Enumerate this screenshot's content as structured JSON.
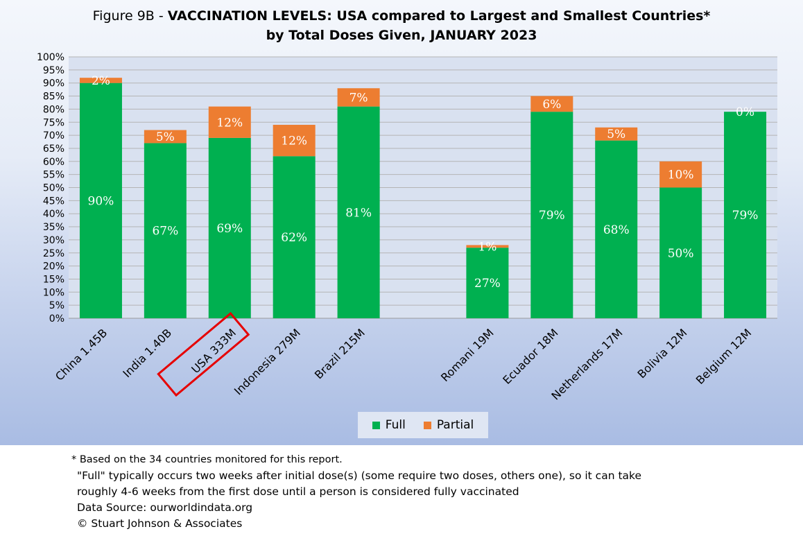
{
  "title": {
    "prefix": "Figure 9B - ",
    "main": "VACCINATION LEVELS:  USA compared to Largest and Smallest Countries*",
    "line2": "by Total Doses Given, JANUARY 2023"
  },
  "colors": {
    "full": "#00b050",
    "partial": "#ed7d31",
    "highlight": "#e60000"
  },
  "chart_data": {
    "type": "bar",
    "stacked": true,
    "categories": [
      "China 1.45B",
      "India 1.40B",
      "USA 333M",
      "Indonesia 279M",
      "Brazil 215M",
      "",
      "Romani 19M",
      "Ecuador 18M",
      "Netherlands 17M",
      "Bolivia 12M",
      "Belgium 12M"
    ],
    "series": [
      {
        "name": "Full",
        "values": [
          90,
          67,
          69,
          62,
          81,
          null,
          27,
          79,
          68,
          50,
          79
        ],
        "labels": [
          "90%",
          "67%",
          "69%",
          "62%",
          "81%",
          "",
          "27%",
          "79%",
          "68%",
          "50%",
          "79%"
        ]
      },
      {
        "name": "Partial",
        "values": [
          2,
          5,
          12,
          12,
          7,
          null,
          1,
          6,
          5,
          10,
          0
        ],
        "labels": [
          "2%",
          "5%",
          "12%",
          "12%",
          "7%",
          "",
          "1%",
          "6%",
          "5%",
          "10%",
          "0%"
        ]
      }
    ],
    "y_ticks": [
      "0%",
      "5%",
      "10%",
      "15%",
      "20%",
      "25%",
      "30%",
      "35%",
      "40%",
      "45%",
      "50%",
      "55%",
      "60%",
      "65%",
      "70%",
      "75%",
      "80%",
      "85%",
      "90%",
      "95%",
      "100%"
    ],
    "ylim": [
      0,
      100
    ],
    "grid": true,
    "legend_position": "bottom",
    "highlighted_category": "USA 333M"
  },
  "legend": {
    "full_label": "Full",
    "partial_label": "Partial"
  },
  "footnotes": {
    "line1": "* Based on the 34 countries monitored for this report.",
    "line2": "\"Full\" typically occurs two weeks after initial dose(s) (some require two doses, others one),  so it can take",
    "line3": "roughly 4-6 weeks from the first dose until a person is considered fully vaccinated",
    "line4": "Data Source:  ourworldindata.org",
    "line5": "© Stuart Johnson & Associates"
  }
}
